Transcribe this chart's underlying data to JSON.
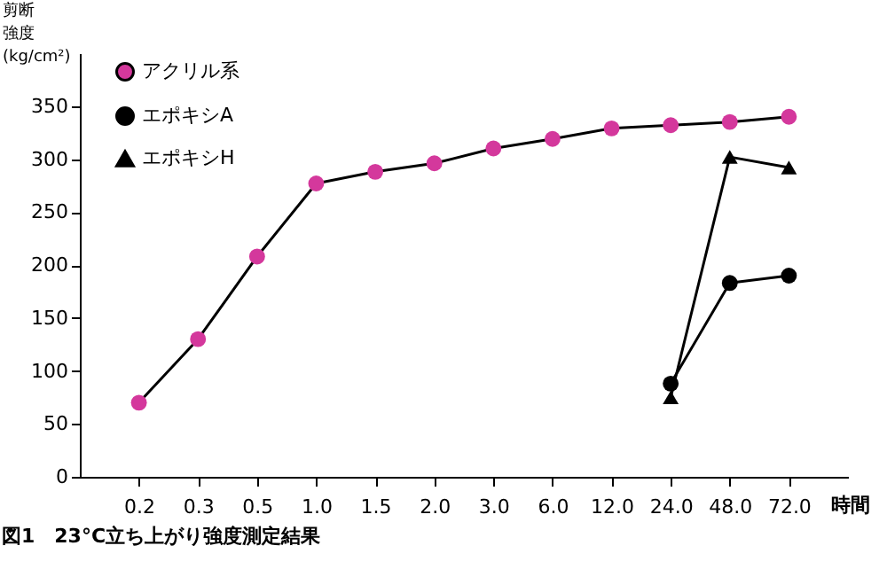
{
  "chart_data": {
    "type": "line",
    "title": "図1　23°C立ち上がり強度測定結果",
    "xlabel": "時間",
    "ylabel": "剪断強度(kg/cm²)",
    "categories": [
      "0.2",
      "0.3",
      "0.5",
      "1.0",
      "1.5",
      "2.0",
      "3.0",
      "6.0",
      "12.0",
      "24.0",
      "48.0",
      "72.0"
    ],
    "series": [
      {
        "name": "アクリル系",
        "color": "#d4389c",
        "marker": "circle",
        "values": [
          70,
          130,
          208,
          277,
          288,
          296,
          310,
          319,
          329,
          332,
          335,
          340
        ]
      },
      {
        "name": "エポキシA",
        "color": "#000000",
        "marker": "circle",
        "values": [
          null,
          null,
          null,
          null,
          null,
          null,
          null,
          null,
          null,
          88,
          183,
          190
        ]
      },
      {
        "name": "エポキシH",
        "color": "#000000",
        "marker": "triangle",
        "values": [
          null,
          null,
          null,
          null,
          null,
          null,
          null,
          null,
          null,
          75,
          302,
          292
        ]
      }
    ],
    "ylim": [
      0,
      400
    ],
    "yticks": [
      0,
      50,
      100,
      150,
      200,
      250,
      300,
      350
    ],
    "grid": false,
    "legend": "top left",
    "line_style": "solid"
  }
}
